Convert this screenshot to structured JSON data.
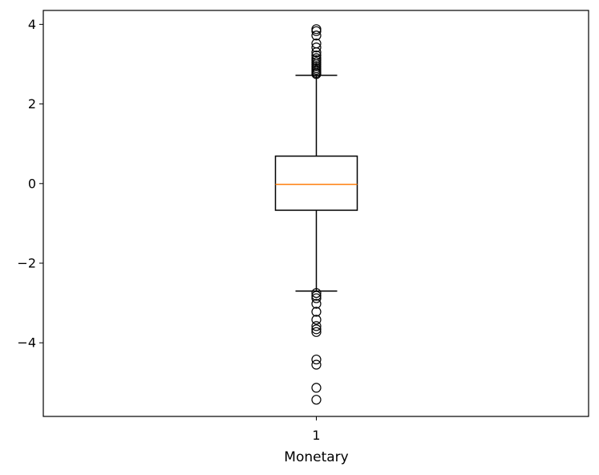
{
  "chart_data": {
    "type": "box",
    "xlabel": "Monetary",
    "ylabel": "",
    "title": "",
    "categories": [
      "1"
    ],
    "ylim": [
      -5.85,
      4.35
    ],
    "yticks": [
      4,
      2,
      0,
      -2,
      -4
    ],
    "ytick_labels": [
      "4",
      "2",
      "0",
      "−2",
      "−4"
    ],
    "grid": false,
    "box": {
      "whisker_low": -2.7,
      "q1": -0.67,
      "median": -0.02,
      "q3": 0.69,
      "whisker_high": 2.72,
      "outliers_high": [
        2.75,
        2.78,
        2.82,
        2.86,
        2.9,
        2.95,
        3.0,
        3.05,
        3.1,
        3.15,
        3.22,
        3.3,
        3.42,
        3.52,
        3.72,
        3.83,
        3.88
      ],
      "outliers_low": [
        -2.75,
        -2.82,
        -2.88,
        -3.02,
        -3.22,
        -3.42,
        -3.58,
        -3.66,
        -3.73,
        -4.42,
        -4.55,
        -5.13,
        -5.43
      ]
    },
    "colors": {
      "box_edge": "#000000",
      "median_line": "#ff7f0e",
      "outlier_edge": "#000000"
    }
  }
}
